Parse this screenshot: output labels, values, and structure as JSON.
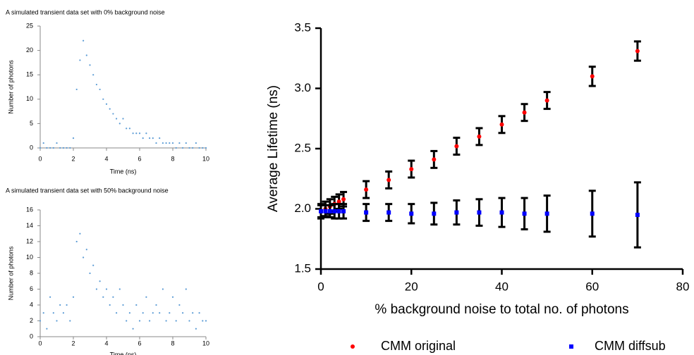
{
  "chart_data": [
    {
      "type": "scatter",
      "title": "A simulated transient data set with 0% background noise",
      "x_label": "Time (ns)",
      "y_label": "Number of photons",
      "xlim": [
        0,
        10
      ],
      "ylim": [
        0,
        25
      ],
      "xticks": [
        0,
        2,
        4,
        6,
        8,
        10
      ],
      "yticks": [
        0,
        5,
        10,
        15,
        20,
        25
      ],
      "grid": false,
      "series": [
        {
          "color": "#5b9bd5",
          "x": [
            0,
            0.2,
            0.4,
            0.6,
            0.8,
            1,
            1.2,
            1.4,
            1.6,
            1.8,
            2,
            2.2,
            2.4,
            2.6,
            2.8,
            3,
            3.2,
            3.4,
            3.6,
            3.8,
            4,
            4.2,
            4.4,
            4.6,
            4.8,
            5,
            5.2,
            5.4,
            5.6,
            5.8,
            6,
            6.2,
            6.4,
            6.6,
            6.8,
            7,
            7.2,
            7.4,
            7.6,
            7.8,
            8,
            8.2,
            8.4,
            8.6,
            8.8,
            9,
            9.2,
            9.4,
            9.6,
            9.8,
            10
          ],
          "values": [
            0,
            1,
            0,
            0,
            0,
            1,
            0,
            0,
            0,
            0,
            2,
            12,
            18,
            22,
            19,
            17,
            15,
            13,
            12,
            10,
            9,
            8,
            7,
            6,
            5,
            6,
            4,
            4,
            3,
            3,
            3,
            2,
            3,
            2,
            2,
            1,
            2,
            1,
            1,
            1,
            1,
            0,
            1,
            0,
            1,
            0,
            0,
            1,
            0,
            0,
            0
          ]
        }
      ]
    },
    {
      "type": "scatter",
      "title": "A simulated transient data set with 50% background noise",
      "x_label": "Time (ns)",
      "y_label": "Number of photons",
      "xlim": [
        0,
        10
      ],
      "ylim": [
        0,
        16
      ],
      "xticks": [
        0,
        2,
        4,
        6,
        8,
        10
      ],
      "yticks": [
        0,
        2,
        4,
        6,
        8,
        10,
        12,
        14,
        16
      ],
      "grid": false,
      "series": [
        {
          "color": "#5b9bd5",
          "x": [
            0,
            0.2,
            0.4,
            0.6,
            0.8,
            1,
            1.2,
            1.4,
            1.6,
            1.8,
            2,
            2.2,
            2.4,
            2.6,
            2.8,
            3,
            3.2,
            3.4,
            3.6,
            3.8,
            4,
            4.2,
            4.4,
            4.6,
            4.8,
            5,
            5.2,
            5.4,
            5.6,
            5.8,
            6,
            6.2,
            6.4,
            6.6,
            6.8,
            7,
            7.2,
            7.4,
            7.6,
            7.8,
            8,
            8.2,
            8.4,
            8.6,
            8.8,
            9,
            9.2,
            9.4,
            9.6,
            9.8,
            10
          ],
          "values": [
            2,
            3,
            1,
            5,
            3,
            2,
            4,
            3,
            4,
            2,
            5,
            12,
            13,
            10,
            11,
            8,
            9,
            6,
            7,
            5,
            6,
            4,
            5,
            3,
            6,
            4,
            2,
            3,
            1,
            4,
            2,
            3,
            5,
            2,
            3,
            4,
            3,
            6,
            2,
            3,
            5,
            2,
            4,
            3,
            6,
            2,
            3,
            1,
            3,
            2,
            2
          ]
        }
      ]
    },
    {
      "type": "errorbar",
      "x_label": "% background noise to total no. of photons",
      "y_label": "Average Lifetime (ns)",
      "xlim": [
        0,
        80
      ],
      "ylim": [
        1.5,
        3.5
      ],
      "xticks": [
        0,
        20,
        40,
        60,
        80
      ],
      "yticks": [
        1.5,
        {
          "value": 2,
          "label": "2.0"
        },
        2.5,
        {
          "value": 3,
          "label": "3.0"
        },
        3.5
      ],
      "grid": false,
      "legend": "bottom",
      "series": [
        {
          "name": "CMM original",
          "color": "#ff0000",
          "marker": "circle",
          "x": [
            0,
            1,
            2,
            3,
            4,
            5,
            10,
            15,
            20,
            25,
            30,
            35,
            40,
            45,
            50,
            60,
            70
          ],
          "values": [
            1.98,
            2.0,
            2.02,
            2.04,
            2.06,
            2.08,
            2.16,
            2.24,
            2.33,
            2.41,
            2.52,
            2.6,
            2.7,
            2.8,
            2.9,
            3.1,
            3.31
          ],
          "errors": [
            0.06,
            0.06,
            0.06,
            0.06,
            0.06,
            0.06,
            0.07,
            0.07,
            0.07,
            0.07,
            0.07,
            0.07,
            0.07,
            0.07,
            0.07,
            0.08,
            0.08
          ]
        },
        {
          "name": "CMM diffsub",
          "color": "#0000ff",
          "marker": "square",
          "x": [
            0,
            1,
            2,
            3,
            4,
            5,
            10,
            15,
            20,
            25,
            30,
            35,
            40,
            45,
            50,
            60,
            70
          ],
          "values": [
            1.98,
            1.98,
            1.98,
            1.98,
            1.98,
            1.98,
            1.97,
            1.97,
            1.96,
            1.96,
            1.97,
            1.97,
            1.97,
            1.96,
            1.96,
            1.96,
            1.95
          ],
          "errors": [
            0.05,
            0.05,
            0.05,
            0.06,
            0.06,
            0.06,
            0.07,
            0.07,
            0.08,
            0.09,
            0.1,
            0.11,
            0.12,
            0.13,
            0.15,
            0.19,
            0.27
          ]
        }
      ]
    }
  ]
}
